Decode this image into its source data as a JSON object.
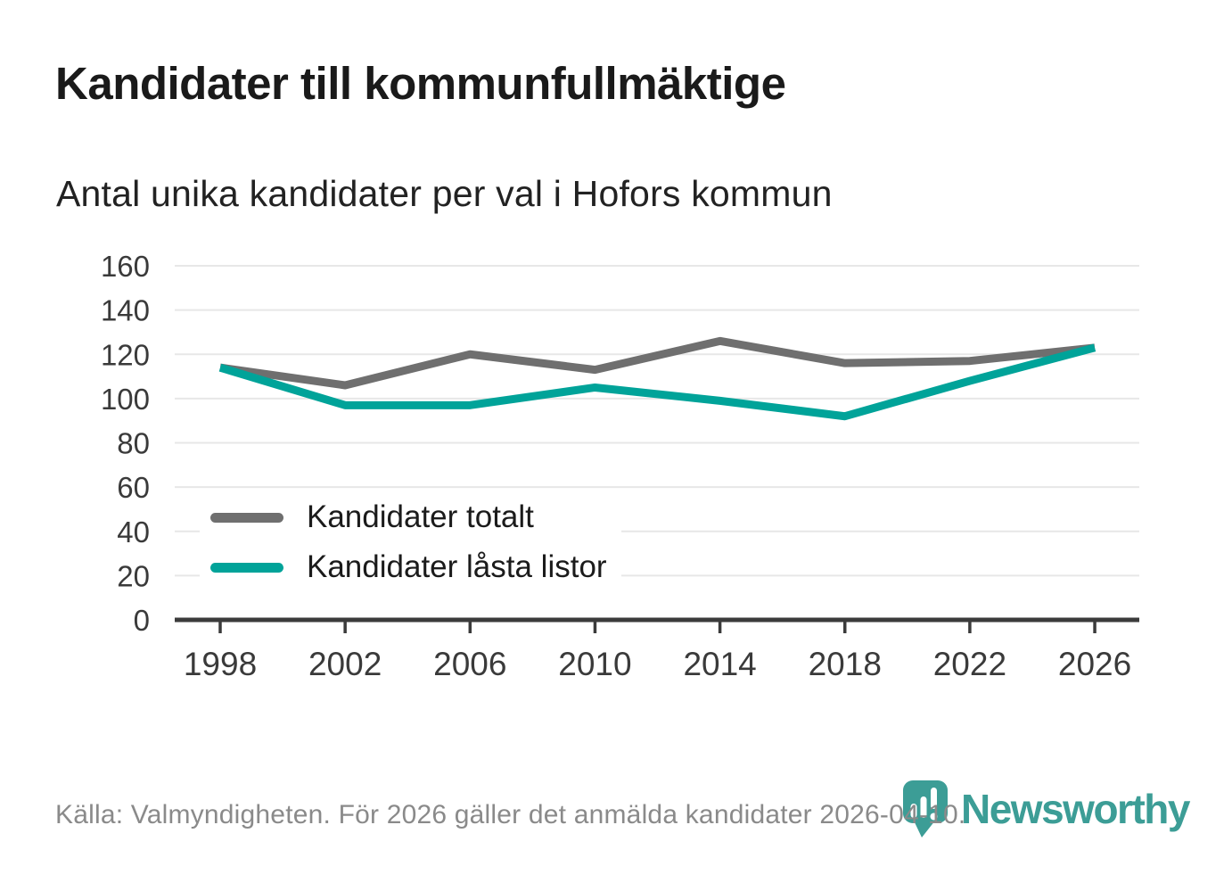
{
  "title": "Kandidater till kommunfullmäktige",
  "subtitle": "Antal unika kandidater per val i Hofors kommun",
  "legend": {
    "items": [
      {
        "label": "Kandidater totalt",
        "color": "#6f6f6f"
      },
      {
        "label": "Kandidater låsta listor",
        "color": "#00a399"
      }
    ]
  },
  "footer": {
    "source": "Källa: Valmyndigheten. För 2026 gäller det anmälda kandidater 2026-04-10."
  },
  "branding": {
    "logo_text": "Newsworthy",
    "logo_color": "#3c9d96",
    "logo_icon": "newsworthy-pin-bar-chart-icon"
  },
  "chart_data": {
    "type": "line",
    "title": "Kandidater till kommunfullmäktige",
    "subtitle": "Antal unika kandidater per val i Hofors kommun",
    "x": [
      1998,
      2002,
      2006,
      2010,
      2014,
      2018,
      2022,
      2026
    ],
    "series": [
      {
        "name": "Kandidater totalt",
        "color": "#6f6f6f",
        "values": [
          114,
          106,
          120,
          113,
          126,
          116,
          117,
          123
        ]
      },
      {
        "name": "Kandidater låsta listor",
        "color": "#00a399",
        "values": [
          114,
          97,
          97,
          105,
          99,
          92,
          108,
          123
        ]
      }
    ],
    "ylim": [
      0,
      160
    ],
    "yticks": [
      0,
      20,
      40,
      60,
      80,
      100,
      120,
      140,
      160
    ],
    "grid": "horizontal",
    "gridline_color": "#e7e7e7",
    "axis_color": "#3b3b3b",
    "tick_label_color": "#3a3a3a",
    "legend_position": "inside-lower-left"
  }
}
